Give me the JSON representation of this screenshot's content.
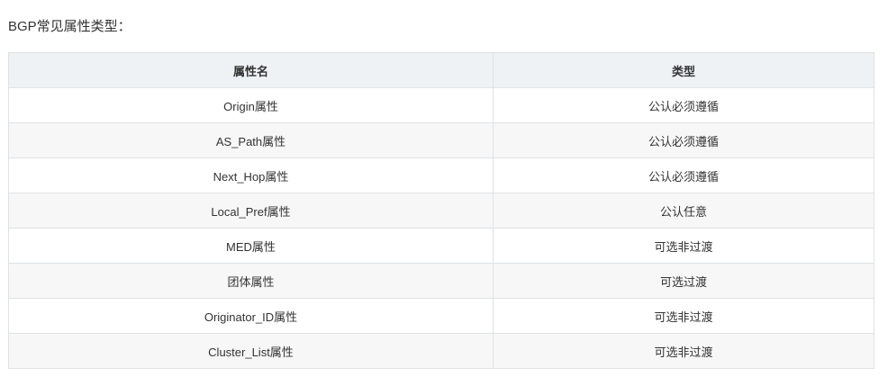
{
  "title": "BGP常见属性类型：",
  "table": {
    "headers": [
      "属性名",
      "类型"
    ],
    "rows": [
      [
        "Origin属性",
        "公认必须遵循"
      ],
      [
        "AS_Path属性",
        "公认必须遵循"
      ],
      [
        "Next_Hop属性",
        "公认必须遵循"
      ],
      [
        "Local_Pref属性",
        "公认任意"
      ],
      [
        "MED属性",
        "可选非过渡"
      ],
      [
        "团体属性",
        "可选过渡"
      ],
      [
        "Originator_ID属性",
        "可选非过渡"
      ],
      [
        "Cluster_List属性",
        "可选非过渡"
      ]
    ]
  }
}
